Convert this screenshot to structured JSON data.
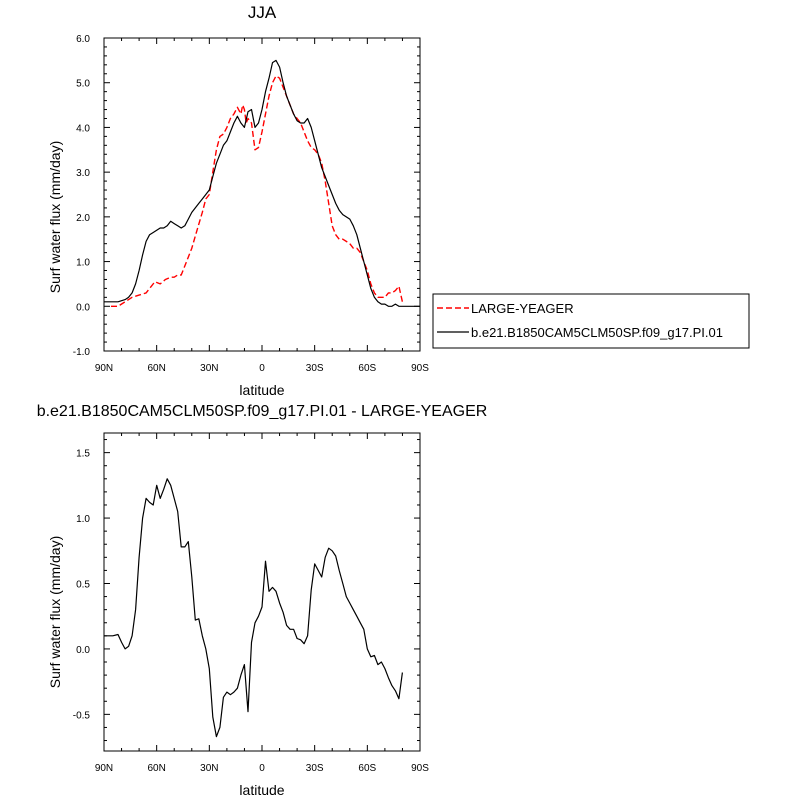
{
  "chart_data": [
    {
      "type": "line",
      "title": "JJA",
      "xlabel": "latitude",
      "ylabel": "Surf water flux (mm/day)",
      "xlim": [
        90,
        -90
      ],
      "ylim": [
        -1.0,
        6.0
      ],
      "x_ticks": [
        {
          "value": 90,
          "label": "90N"
        },
        {
          "value": 60,
          "label": "60N"
        },
        {
          "value": 30,
          "label": "30N"
        },
        {
          "value": 0,
          "label": "0"
        },
        {
          "value": -30,
          "label": "30S"
        },
        {
          "value": -60,
          "label": "60S"
        },
        {
          "value": -90,
          "label": "90S"
        }
      ],
      "y_ticks": [
        {
          "value": -1.0,
          "label": "-1.0"
        },
        {
          "value": 0.0,
          "label": "0.0"
        },
        {
          "value": 1.0,
          "label": "1.0"
        },
        {
          "value": 2.0,
          "label": "2.0"
        },
        {
          "value": 3.0,
          "label": "3.0"
        },
        {
          "value": 4.0,
          "label": "4.0"
        },
        {
          "value": 5.0,
          "label": "5.0"
        },
        {
          "value": 6.0,
          "label": "6.0"
        }
      ],
      "legend_position": "right",
      "series": [
        {
          "name": "LARGE-YEAGER",
          "color": "#ff0000",
          "dash": "dashed",
          "x": [
            86,
            82,
            78,
            74,
            70,
            66,
            63,
            61,
            58,
            55,
            52,
            50,
            48,
            46,
            44,
            42,
            40,
            37,
            34,
            32,
            30,
            28,
            26,
            24,
            22,
            20,
            18,
            16,
            14,
            12,
            11,
            10,
            9,
            8,
            6,
            4,
            2,
            0,
            -2,
            -4,
            -6,
            -8,
            -10,
            -12,
            -14,
            -16,
            -18,
            -20,
            -22,
            -24,
            -26,
            -28,
            -30,
            -32,
            -34,
            -36,
            -38,
            -40,
            -42,
            -44,
            -46,
            -48,
            -50,
            -52,
            -54,
            -56,
            -58,
            -60,
            -62,
            -64,
            -66,
            -68,
            -70,
            -72,
            -74,
            -76,
            -78,
            -80
          ],
          "y": [
            0.0,
            0.0,
            0.1,
            0.2,
            0.25,
            0.3,
            0.45,
            0.55,
            0.5,
            0.6,
            0.65,
            0.65,
            0.7,
            0.7,
            0.9,
            1.1,
            1.3,
            1.7,
            2.1,
            2.4,
            2.5,
            3.0,
            3.5,
            3.8,
            3.85,
            4.0,
            4.2,
            4.3,
            4.45,
            4.3,
            4.5,
            4.4,
            4.1,
            4.2,
            4.1,
            3.5,
            3.55,
            3.9,
            4.3,
            4.7,
            5.0,
            5.15,
            5.1,
            4.9,
            4.7,
            4.5,
            4.3,
            4.2,
            4.1,
            3.9,
            3.7,
            3.55,
            3.5,
            3.4,
            3.2,
            2.8,
            2.3,
            1.8,
            1.6,
            1.5,
            1.5,
            1.45,
            1.4,
            1.3,
            1.3,
            1.2,
            1.0,
            0.8,
            0.5,
            0.3,
            0.2,
            0.2,
            0.2,
            0.3,
            0.3,
            0.35,
            0.45,
            0.1
          ]
        },
        {
          "name": "b.e21.B1850CAM5CLM50SP.f09_g17.PI.01",
          "color": "#000000",
          "dash": "solid",
          "x": [
            90,
            86,
            82,
            78,
            76,
            74,
            72,
            70,
            68,
            66,
            64,
            62,
            60,
            58,
            56,
            54,
            52,
            50,
            48,
            46,
            44,
            42,
            40,
            38,
            36,
            34,
            32,
            30,
            28,
            26,
            24,
            22,
            20,
            18,
            16,
            14,
            12,
            10,
            8,
            6,
            4,
            2,
            0,
            -2,
            -4,
            -6,
            -8,
            -10,
            -12,
            -14,
            -16,
            -18,
            -20,
            -22,
            -24,
            -26,
            -28,
            -30,
            -32,
            -34,
            -36,
            -38,
            -40,
            -42,
            -44,
            -46,
            -48,
            -50,
            -52,
            -54,
            -56,
            -58,
            -60,
            -62,
            -64,
            -66,
            -68,
            -70,
            -72,
            -74,
            -76,
            -78,
            -80,
            -82,
            -86,
            -90
          ],
          "y": [
            0.1,
            0.1,
            0.1,
            0.15,
            0.2,
            0.3,
            0.5,
            0.8,
            1.15,
            1.45,
            1.6,
            1.65,
            1.7,
            1.75,
            1.75,
            1.8,
            1.9,
            1.85,
            1.8,
            1.75,
            1.8,
            1.95,
            2.1,
            2.2,
            2.3,
            2.4,
            2.5,
            2.6,
            2.9,
            3.2,
            3.4,
            3.6,
            3.7,
            3.9,
            4.1,
            4.25,
            4.1,
            4.0,
            4.35,
            4.4,
            4.0,
            4.1,
            4.4,
            4.8,
            5.1,
            5.45,
            5.5,
            5.35,
            5.0,
            4.7,
            4.5,
            4.3,
            4.15,
            4.1,
            4.1,
            4.2,
            4.0,
            3.7,
            3.4,
            3.1,
            2.9,
            2.7,
            2.5,
            2.3,
            2.15,
            2.05,
            2.0,
            1.95,
            1.8,
            1.6,
            1.3,
            1.0,
            0.7,
            0.4,
            0.2,
            0.1,
            0.05,
            0.05,
            0.0,
            0.0,
            0.05,
            0.0,
            0.0,
            0.0,
            0.0,
            0.0
          ]
        }
      ]
    },
    {
      "type": "line",
      "title": "b.e21.B1850CAM5CLM50SP.f09_g17.PI.01 - LARGE-YEAGER",
      "xlabel": "latitude",
      "ylabel": "Surf water flux (mm/day)",
      "xlim": [
        90,
        -90
      ],
      "ylim": [
        -0.78,
        1.65
      ],
      "x_ticks": [
        {
          "value": 90,
          "label": "90N"
        },
        {
          "value": 60,
          "label": "60N"
        },
        {
          "value": 30,
          "label": "30N"
        },
        {
          "value": 0,
          "label": "0"
        },
        {
          "value": -30,
          "label": "30S"
        },
        {
          "value": -60,
          "label": "60S"
        },
        {
          "value": -90,
          "label": "90S"
        }
      ],
      "y_ticks": [
        {
          "value": -0.5,
          "label": "-0.5"
        },
        {
          "value": 0.0,
          "label": "0.0"
        },
        {
          "value": 0.5,
          "label": "0.5"
        },
        {
          "value": 1.0,
          "label": "1.0"
        },
        {
          "value": 1.5,
          "label": "1.5"
        }
      ],
      "series": [
        {
          "color": "#000000",
          "dash": "solid",
          "x": [
            90,
            85,
            82,
            80,
            78,
            76,
            74,
            72,
            70,
            68,
            66,
            64,
            62,
            60,
            58,
            56,
            54,
            52,
            50,
            48,
            46,
            44,
            42,
            40,
            38,
            36,
            34,
            32,
            30,
            28,
            26,
            24,
            22,
            20,
            18,
            16,
            14,
            12,
            10,
            8,
            6,
            4,
            2,
            0,
            -2,
            -4,
            -6,
            -8,
            -10,
            -12,
            -14,
            -16,
            -18,
            -20,
            -22,
            -24,
            -26,
            -28,
            -30,
            -32,
            -34,
            -36,
            -38,
            -40,
            -42,
            -44,
            -46,
            -48,
            -50,
            -52,
            -54,
            -56,
            -58,
            -60,
            -62,
            -64,
            -66,
            -68,
            -70,
            -72,
            -74,
            -76,
            -78,
            -80
          ],
          "y": [
            0.1,
            0.1,
            0.11,
            0.05,
            0.0,
            0.02,
            0.1,
            0.3,
            0.7,
            1.0,
            1.15,
            1.12,
            1.1,
            1.25,
            1.15,
            1.22,
            1.3,
            1.25,
            1.15,
            1.05,
            0.78,
            0.78,
            0.82,
            0.55,
            0.22,
            0.23,
            0.1,
            0.0,
            -0.15,
            -0.52,
            -0.67,
            -0.6,
            -0.37,
            -0.33,
            -0.35,
            -0.33,
            -0.3,
            -0.2,
            -0.12,
            -0.48,
            0.05,
            0.2,
            0.25,
            0.32,
            0.67,
            0.44,
            0.47,
            0.44,
            0.35,
            0.28,
            0.18,
            0.15,
            0.15,
            0.08,
            0.07,
            0.04,
            0.1,
            0.45,
            0.65,
            0.6,
            0.55,
            0.7,
            0.77,
            0.75,
            0.71,
            0.6,
            0.5,
            0.4,
            0.35,
            0.3,
            0.25,
            0.2,
            0.15,
            0.0,
            -0.06,
            -0.05,
            -0.12,
            -0.1,
            -0.15,
            -0.22,
            -0.28,
            -0.32,
            -0.38,
            -0.18
          ]
        }
      ]
    }
  ]
}
